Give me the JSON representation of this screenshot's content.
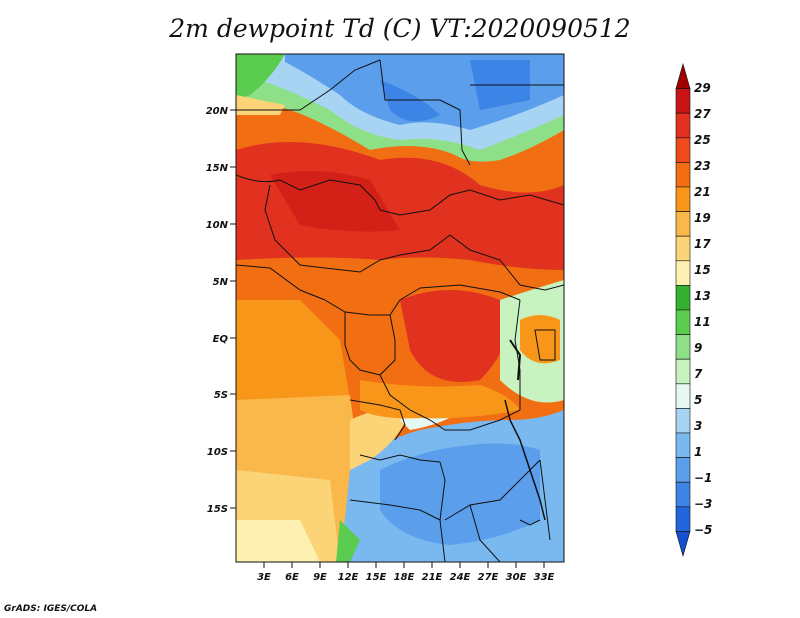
{
  "title": "2m dewpoint Td (C) VT:2020090512",
  "credit": "GrADS: IGES/COLA",
  "map": {
    "lon_labels": [
      "3E",
      "6E",
      "9E",
      "12E",
      "15E",
      "18E",
      "21E",
      "24E",
      "27E",
      "30E",
      "33E"
    ],
    "lat_labels": [
      "20N",
      "15N",
      "10N",
      "5N",
      "EQ",
      "5S",
      "10S",
      "15S"
    ]
  },
  "colorbar": {
    "labels": [
      "29",
      "27",
      "25",
      "23",
      "21",
      "19",
      "17",
      "15",
      "13",
      "11",
      "9",
      "7",
      "5",
      "3",
      "1",
      "−1",
      "−3",
      "−5"
    ],
    "colors": [
      "#a00000",
      "#c81414",
      "#e0321e",
      "#ee4a1c",
      "#f26e12",
      "#f8961a",
      "#fab84a",
      "#fcd478",
      "#fdf0b0",
      "#36b030",
      "#5acc50",
      "#8ee088",
      "#c8f2c0",
      "#e6f8f4",
      "#a8d4f4",
      "#7ab8f0",
      "#5a9eec",
      "#3c84e6",
      "#2266dc",
      "#1450d0"
    ]
  }
}
